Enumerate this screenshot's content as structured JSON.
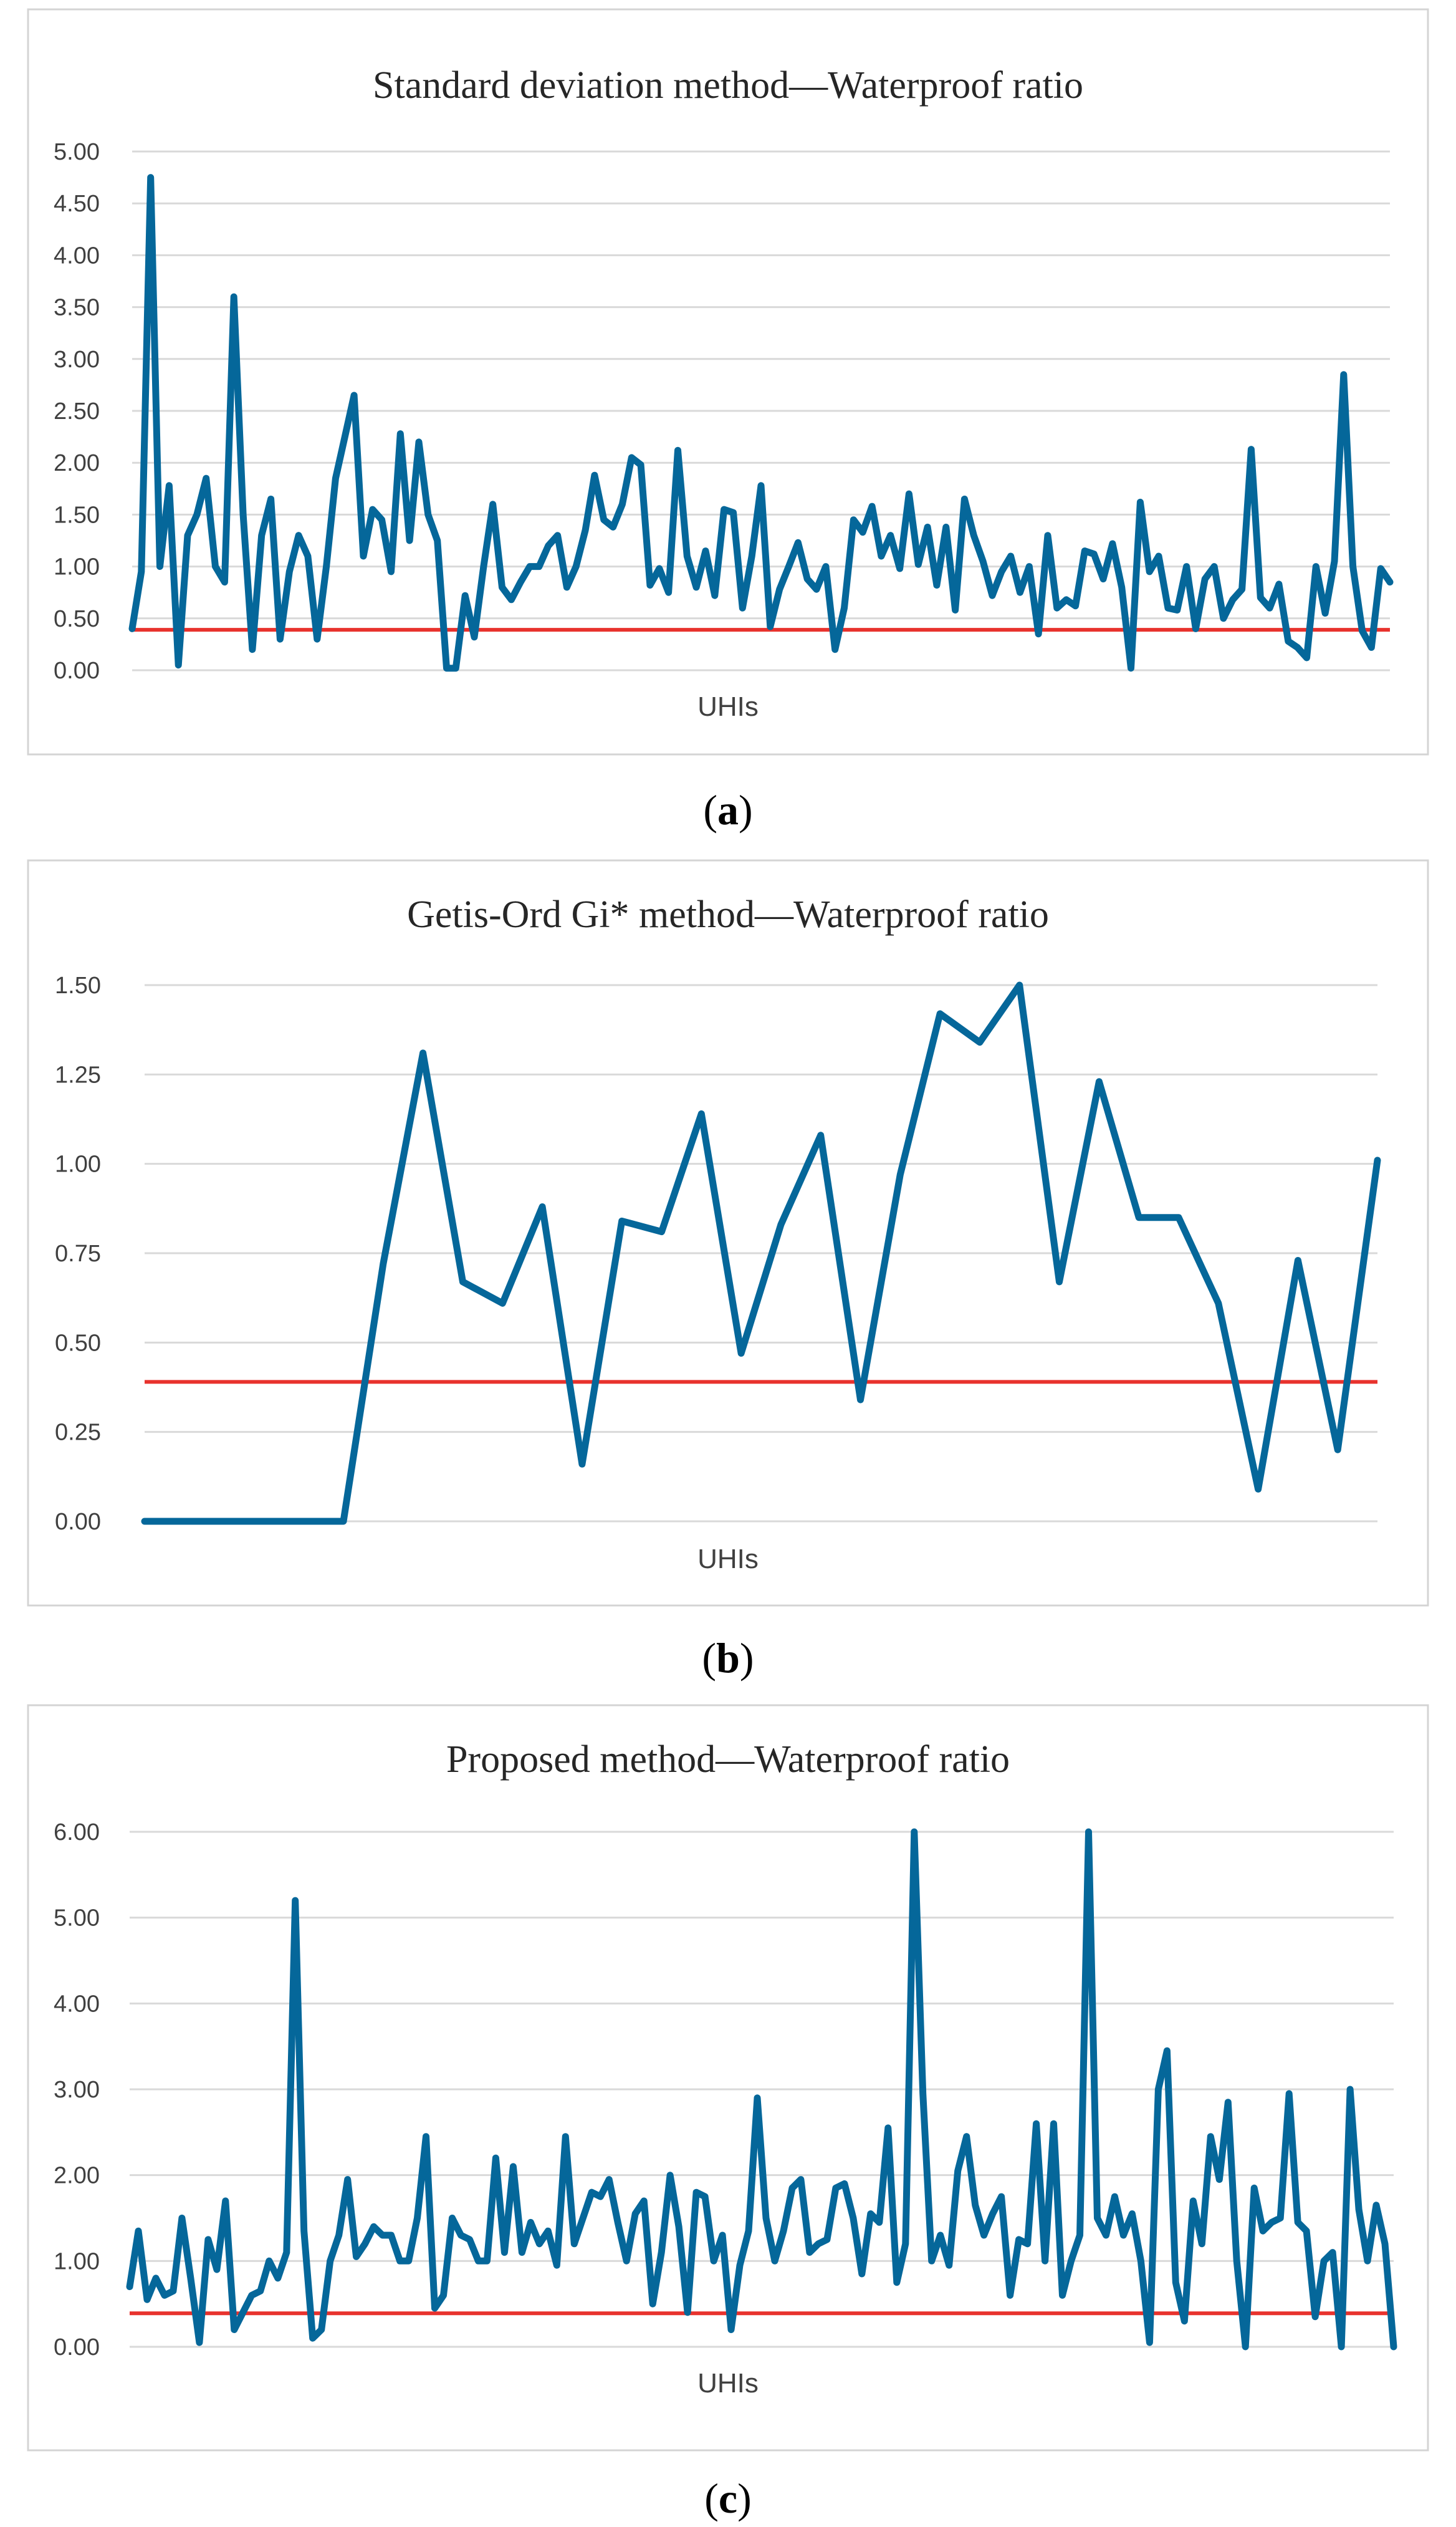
{
  "chart_data": [
    {
      "type": "line",
      "title": "Standard deviation method—Waterproof ratio",
      "xlabel": "UHIs",
      "ylabel": "",
      "ylim": [
        0,
        5
      ],
      "yticks": [
        "0.00",
        "0.50",
        "1.00",
        "1.50",
        "2.00",
        "2.50",
        "3.00",
        "3.50",
        "4.00",
        "4.50",
        "5.00"
      ],
      "threshold": 0.39,
      "caption_letter": "a",
      "series": [
        {
          "name": "Waterproof ratio",
          "color": "#05679a",
          "values": [
            0.4,
            0.95,
            4.75,
            1.0,
            1.78,
            0.05,
            1.3,
            1.5,
            1.85,
            1.0,
            0.85,
            3.6,
            1.5,
            0.2,
            1.3,
            1.65,
            0.3,
            0.95,
            1.3,
            1.1,
            0.3,
            1.0,
            1.85,
            2.25,
            2.65,
            1.1,
            1.55,
            1.45,
            0.95,
            2.28,
            1.25,
            2.2,
            1.5,
            1.25,
            0.02,
            0.02,
            0.72,
            0.32,
            1.0,
            1.6,
            0.8,
            0.68,
            0.85,
            1.0,
            1.0,
            1.2,
            1.3,
            0.8,
            1.0,
            1.35,
            1.88,
            1.45,
            1.38,
            1.6,
            2.05,
            1.98,
            0.82,
            0.98,
            0.75,
            2.12,
            1.1,
            0.8,
            1.15,
            0.72,
            1.55,
            1.52,
            0.6,
            1.1,
            1.78,
            0.42,
            0.78,
            1.0,
            1.23,
            0.88,
            0.78,
            1.0,
            0.2,
            0.6,
            1.45,
            1.33,
            1.58,
            1.1,
            1.3,
            0.98,
            1.7,
            1.02,
            1.38,
            0.82,
            1.38,
            0.58,
            1.65,
            1.3,
            1.05,
            0.72,
            0.95,
            1.1,
            0.75,
            1.0,
            0.35,
            1.3,
            0.6,
            0.68,
            0.62,
            1.15,
            1.12,
            0.88,
            1.22,
            0.8,
            0.02,
            1.62,
            0.95,
            1.1,
            0.6,
            0.58,
            1.0,
            0.4,
            0.88,
            1.0,
            0.5,
            0.68,
            0.78,
            2.13,
            0.7,
            0.6,
            0.83,
            0.28,
            0.22,
            0.12,
            1.0,
            0.55,
            1.05,
            2.85,
            1.0,
            0.38,
            0.22,
            0.98,
            0.85
          ]
        }
      ]
    },
    {
      "type": "line",
      "title": "Getis-Ord Gi* method—Waterproof ratio",
      "xlabel": "UHIs",
      "ylabel": "",
      "ylim": [
        0,
        1.5
      ],
      "yticks": [
        "0.00",
        "0.25",
        "0.50",
        "0.75",
        "1.00",
        "1.25",
        "1.50"
      ],
      "threshold": 0.39,
      "caption_letter": "b",
      "series": [
        {
          "name": "Waterproof ratio",
          "color": "#05679a",
          "values": [
            0.0,
            0.0,
            0.0,
            0.0,
            0.0,
            0.0,
            0.72,
            1.31,
            0.67,
            0.61,
            0.88,
            0.16,
            0.84,
            0.81,
            1.14,
            0.47,
            0.83,
            1.08,
            0.34,
            0.97,
            1.42,
            1.34,
            1.5,
            0.67,
            1.23,
            0.85,
            0.85,
            0.61,
            0.09,
            0.73,
            0.2,
            1.01
          ]
        }
      ]
    },
    {
      "type": "line",
      "title": "Proposed method—Waterproof ratio",
      "xlabel": "UHIs",
      "ylabel": "",
      "ylim": [
        0,
        6
      ],
      "yticks": [
        "0.00",
        "1.00",
        "2.00",
        "3.00",
        "4.00",
        "5.00",
        "6.00"
      ],
      "threshold": 0.39,
      "caption_letter": "c",
      "series": [
        {
          "name": "Waterproof ratio",
          "color": "#05679a",
          "values": [
            0.7,
            1.35,
            0.55,
            0.8,
            0.6,
            0.65,
            1.5,
            0.8,
            0.05,
            1.25,
            0.9,
            1.7,
            0.2,
            0.4,
            0.6,
            0.65,
            1.0,
            0.8,
            1.1,
            5.2,
            1.35,
            0.1,
            0.2,
            1.0,
            1.3,
            1.95,
            1.05,
            1.2,
            1.4,
            1.3,
            1.3,
            1.0,
            1.0,
            1.5,
            2.45,
            0.45,
            0.6,
            1.5,
            1.3,
            1.25,
            1.0,
            1.0,
            2.2,
            1.1,
            2.1,
            1.1,
            1.45,
            1.2,
            1.35,
            0.95,
            2.45,
            1.2,
            1.5,
            1.8,
            1.75,
            1.95,
            1.45,
            1.0,
            1.55,
            1.7,
            0.5,
            1.1,
            2.0,
            1.4,
            0.4,
            1.8,
            1.75,
            1.0,
            1.3,
            0.2,
            0.95,
            1.35,
            2.9,
            1.5,
            1.0,
            1.35,
            1.85,
            1.95,
            1.1,
            1.2,
            1.25,
            1.85,
            1.9,
            1.5,
            0.85,
            1.55,
            1.45,
            2.55,
            0.75,
            1.2,
            6.0,
            2.95,
            1.0,
            1.3,
            0.95,
            2.05,
            2.45,
            1.65,
            1.3,
            1.55,
            1.75,
            0.6,
            1.25,
            1.2,
            2.6,
            1.0,
            2.6,
            0.6,
            1.0,
            1.3,
            6.0,
            1.5,
            1.3,
            1.75,
            1.3,
            1.55,
            1.0,
            0.05,
            3.0,
            3.45,
            0.75,
            0.3,
            1.7,
            1.2,
            2.45,
            1.95,
            2.85,
            1.0,
            0.0,
            1.85,
            1.35,
            1.45,
            1.5,
            2.95,
            1.45,
            1.35,
            0.35,
            1.0,
            1.1,
            0.0,
            3.0,
            1.6,
            1.0,
            1.65,
            1.2,
            0.0
          ]
        }
      ]
    }
  ]
}
